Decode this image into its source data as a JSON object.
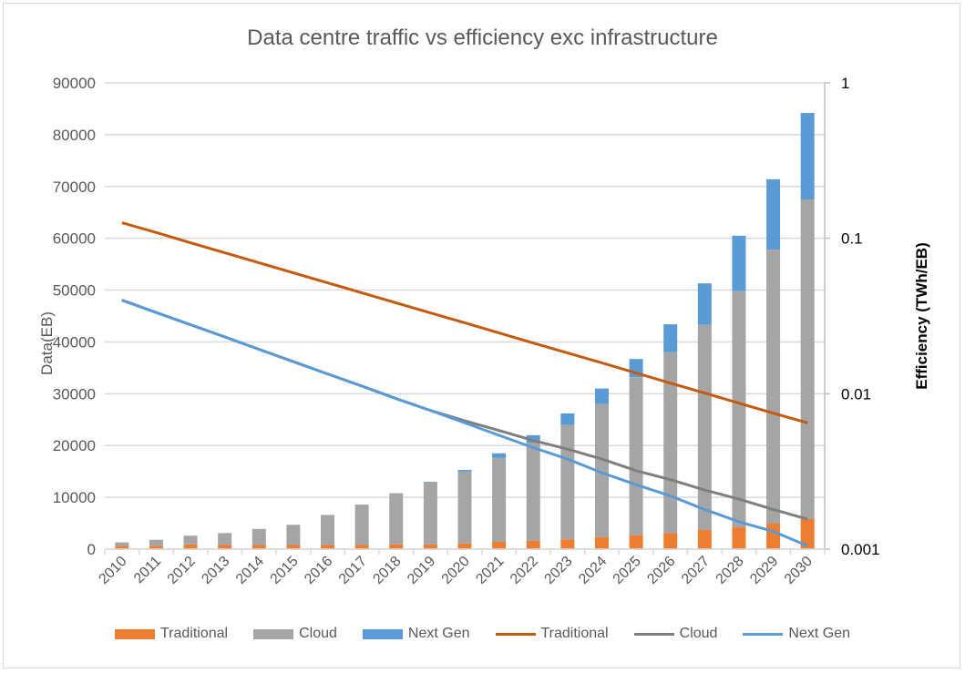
{
  "chart_data": {
    "type": "bar+line",
    "title": "Data centre traffic vs efficiency exc infrastructure",
    "ylabel": "Data(EB)",
    "y2label": "Efficiency (TWh/EB)",
    "ylim": [
      0,
      90000
    ],
    "yticks": [
      "0",
      "10000",
      "20000",
      "30000",
      "40000",
      "50000",
      "60000",
      "70000",
      "80000",
      "90000"
    ],
    "y2scale": "log",
    "y2lim": [
      0.001,
      1
    ],
    "y2ticks": [
      "0.001",
      "0.01",
      "0.1",
      "1"
    ],
    "grid": true,
    "legend_position": "bottom",
    "categories": [
      "2010",
      "2011",
      "2012",
      "2013",
      "2014",
      "2015",
      "2016",
      "2017",
      "2018",
      "2019",
      "2020",
      "2021",
      "2022",
      "2023",
      "2024",
      "2025",
      "2026",
      "2027",
      "2028",
      "2029",
      "2030"
    ],
    "bar_series": [
      {
        "name": "Traditional",
        "color": "#ed7d31",
        "values": [
          600,
          600,
          900,
          800,
          800,
          800,
          800,
          800,
          900,
          900,
          1100,
          1400,
          1600,
          1900,
          2300,
          2700,
          3100,
          3700,
          4200,
          5000,
          5800
        ]
      },
      {
        "name": "Cloud",
        "color": "#a5a5a5",
        "values": [
          700,
          1200,
          1700,
          2300,
          3100,
          3900,
          5800,
          7800,
          9900,
          12000,
          13900,
          16200,
          18900,
          22100,
          25700,
          30500,
          34900,
          39600,
          45600,
          52800,
          61700
        ]
      },
      {
        "name": "Next Gen",
        "color": "#5b9bd5",
        "values": [
          0,
          0,
          0,
          0,
          0,
          0,
          0,
          0,
          0,
          100,
          300,
          900,
          1500,
          2200,
          3000,
          3500,
          5400,
          8000,
          10700,
          13600,
          16700
        ]
      }
    ],
    "line_series": [
      {
        "name": "Traditional",
        "color": "#c55a11",
        "values": [
          0.126,
          0.109,
          0.0936,
          0.0807,
          0.0696,
          0.06,
          0.0517,
          0.0446,
          0.0384,
          0.0331,
          0.0286,
          0.0246,
          0.0212,
          0.0183,
          0.0158,
          0.0136,
          0.0117,
          0.0101,
          0.0087,
          0.0075,
          0.0065
        ]
      },
      {
        "name": "Cloud",
        "color": "#7f7f7f",
        "values": [
          0.04,
          0.0333,
          0.0278,
          0.0232,
          0.0193,
          0.0161,
          0.0134,
          0.0112,
          0.0093,
          0.0078,
          0.0067,
          0.0058,
          0.005,
          0.0044,
          0.0038,
          0.0032,
          0.0028,
          0.0024,
          0.0021,
          0.0018,
          0.00156
        ]
      },
      {
        "name": "Next Gen",
        "color": "#5b9bd5",
        "values": [
          0.04,
          0.0333,
          0.0278,
          0.0232,
          0.0193,
          0.0161,
          0.0134,
          0.0112,
          0.0093,
          0.0078,
          0.0065,
          0.0054,
          0.0045,
          0.0038,
          0.0031,
          0.0026,
          0.0022,
          0.0018,
          0.0015,
          0.0013,
          0.00105
        ]
      }
    ]
  }
}
